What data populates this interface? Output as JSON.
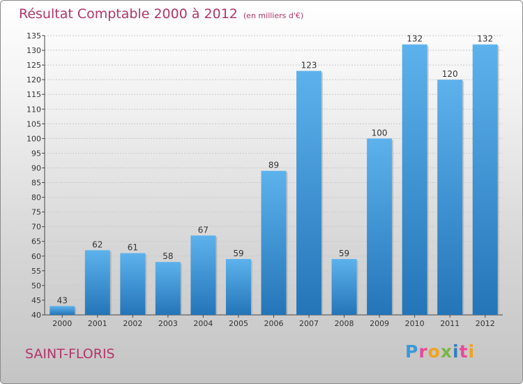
{
  "chart_data": {
    "type": "bar",
    "title": "Résultat Comptable 2000 à 2012",
    "unit": "(en milliers d'€)",
    "categories": [
      "2000",
      "2001",
      "2002",
      "2003",
      "2004",
      "2005",
      "2006",
      "2007",
      "2008",
      "2009",
      "2010",
      "2011",
      "2012"
    ],
    "values": [
      43,
      62,
      61,
      58,
      67,
      59,
      89,
      123,
      59,
      100,
      132,
      120,
      132
    ],
    "ylim": [
      40,
      135
    ],
    "ytick_step": 5,
    "xlabel": "",
    "ylabel": "",
    "grid": true,
    "bar_color": "#2d8ed8"
  },
  "footer": {
    "commune": "SAINT-FLORIS",
    "logo": [
      "P",
      "r",
      "o",
      "x",
      "i",
      "t",
      "i"
    ],
    "logo_colors": [
      "#3a9ad9",
      "#e94a9a",
      "#f2a21b",
      "#7ab648",
      "#2f7fc1",
      "#e94a9a",
      "#f2a21b"
    ]
  }
}
